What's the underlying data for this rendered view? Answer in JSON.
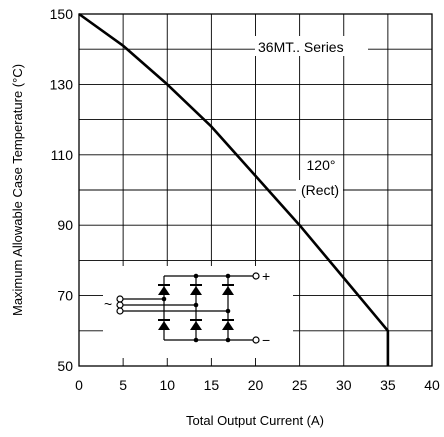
{
  "chart_data": {
    "type": "line",
    "xlabel": "Total Output Current (A)",
    "ylabel": "Maximum Allowable Case Temperature (°C)",
    "xlim": [
      0,
      40
    ],
    "ylim": [
      50,
      150
    ],
    "x_ticks": [
      "0",
      "5",
      "10",
      "15",
      "20",
      "25",
      "30",
      "35",
      "40"
    ],
    "y_ticks": [
      "50",
      "70",
      "90",
      "110",
      "130",
      "150"
    ],
    "grid": true,
    "series": [
      {
        "x": [
          0,
          5,
          10,
          15,
          20,
          25,
          30,
          35,
          35
        ],
        "y": [
          150,
          141,
          130,
          118,
          104,
          90,
          75,
          60,
          50
        ]
      }
    ],
    "annotations": {
      "series_label": "36MT.. Series",
      "condition_line1": "120°",
      "condition_line2": "(Rect)"
    },
    "circuit": {
      "plus": "+",
      "minus": "−",
      "ac": "~"
    }
  }
}
